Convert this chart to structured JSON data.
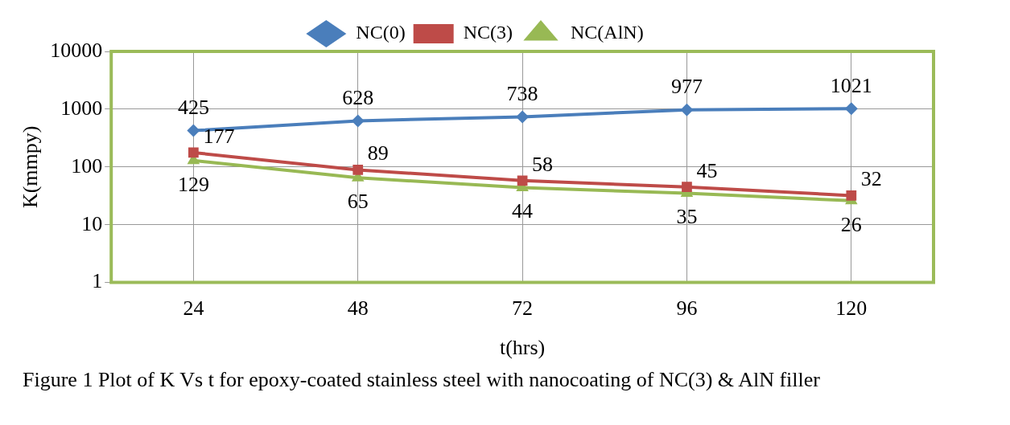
{
  "chart_data": {
    "type": "line",
    "xlabel": "t(hrs)",
    "ylabel": "K(mmpy)",
    "categories": [
      "24",
      "48",
      "72",
      "96",
      "120"
    ],
    "series": [
      {
        "name": "NC(0)",
        "color": "#4a7ebb",
        "marker": "diamond",
        "values": [
          425,
          628,
          738,
          977,
          1021
        ]
      },
      {
        "name": "NC(3)",
        "color": "#be4b48",
        "marker": "square",
        "values": [
          177,
          89,
          58,
          45,
          32
        ]
      },
      {
        "name": "NC(AlN)",
        "color": "#98b954",
        "marker": "triangle",
        "values": [
          129,
          65,
          44,
          35,
          26
        ]
      }
    ],
    "log": "y",
    "ylim": [
      1,
      10000
    ],
    "yticks": [
      1,
      10,
      100,
      1000,
      10000
    ],
    "grid": true,
    "legend": "top",
    "data_labels": true,
    "annotations": [
      "Figure 1 Plot of K Vs t for epoxy-coated stainless steel with nanocoating of NC(3)  & AlN filler"
    ]
  }
}
